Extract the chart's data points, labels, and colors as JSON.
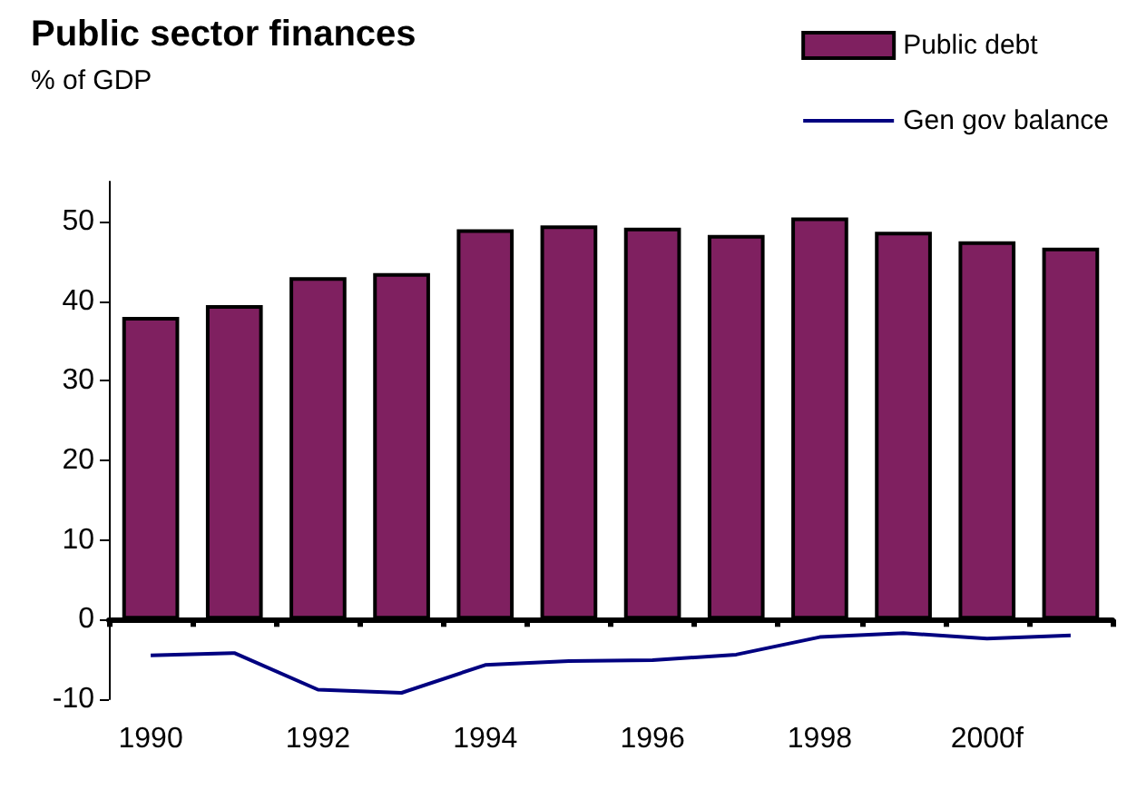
{
  "chart_data": {
    "type": "bar",
    "title": "Public sector finances",
    "subtitle": "% of GDP",
    "categories": [
      "1990",
      null,
      "1992",
      null,
      "1994",
      null,
      "1996",
      null,
      "1998",
      null,
      "2000f",
      null
    ],
    "series": [
      {
        "name": "Public debt",
        "color": "#7f2060",
        "values": [
          38,
          39.5,
          43,
          43.5,
          49,
          49.5,
          49.2,
          48.3,
          50.5,
          48.7,
          47.5,
          46.7
        ]
      },
      {
        "name": "Gen gov balance",
        "type": "line",
        "color": "#000080",
        "values": [
          -4.5,
          -4.2,
          -8.8,
          -9.2,
          -5.7,
          -5.2,
          -5.1,
          -4.4,
          -2.2,
          -1.7,
          -2.4,
          -2.0
        ]
      }
    ],
    "ylim": [
      -10,
      55
    ],
    "yticks": [
      -10,
      0,
      10,
      20,
      30,
      40,
      50
    ],
    "legend": "top right",
    "marker": "none",
    "line_style": "solid"
  }
}
